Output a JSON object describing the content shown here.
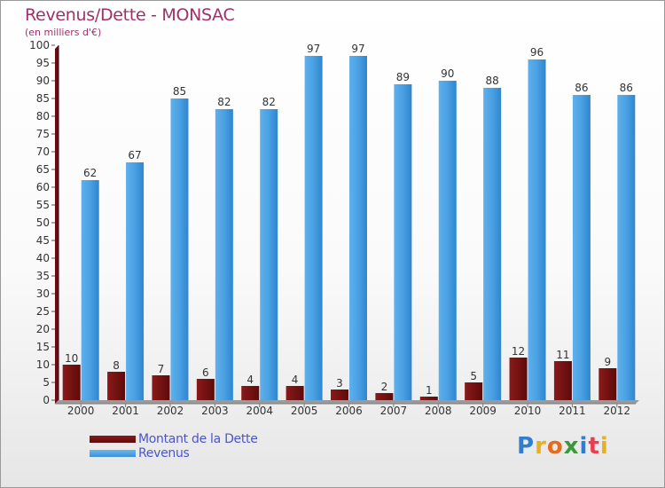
{
  "header": {
    "title": "Revenus/Dette - MONSAC",
    "subtitle": "(en milliers d'€)"
  },
  "chart_data": {
    "type": "bar",
    "title": "Revenus/Dette - MONSAC",
    "ylabel": "(en milliers d'€)",
    "xlabel": "",
    "ylim": [
      0,
      100
    ],
    "ytick_step": 5,
    "grid": false,
    "legend_position": "bottom-left",
    "categories": [
      "2000",
      "2001",
      "2002",
      "2003",
      "2004",
      "2005",
      "2006",
      "2007",
      "2008",
      "2009",
      "2010",
      "2011",
      "2012"
    ],
    "series": [
      {
        "name": "Montant de la Dette",
        "color": "#7a1010",
        "values": [
          10,
          8,
          7,
          6,
          4,
          4,
          3,
          2,
          1,
          5,
          12,
          11,
          9
        ]
      },
      {
        "name": "Revenus",
        "color": "#4a9de0",
        "values": [
          62,
          67,
          85,
          82,
          82,
          97,
          97,
          89,
          90,
          88,
          96,
          86,
          86
        ]
      }
    ]
  },
  "legend": {
    "items": [
      {
        "label": "Montant de la Dette",
        "color": "#7a1010"
      },
      {
        "label": "Revenus",
        "color": "#4a9de0"
      }
    ]
  },
  "brand": {
    "letters": [
      {
        "ch": "P",
        "color": "#2f7fd0"
      },
      {
        "ch": "r",
        "color": "#e8b020"
      },
      {
        "ch": "o",
        "color": "#e86a1c"
      },
      {
        "ch": "x",
        "color": "#3a9a3a"
      },
      {
        "ch": "i",
        "color": "#2f7fd0"
      },
      {
        "ch": "t",
        "color": "#e84050"
      },
      {
        "ch": "i",
        "color": "#e8b020"
      }
    ]
  }
}
